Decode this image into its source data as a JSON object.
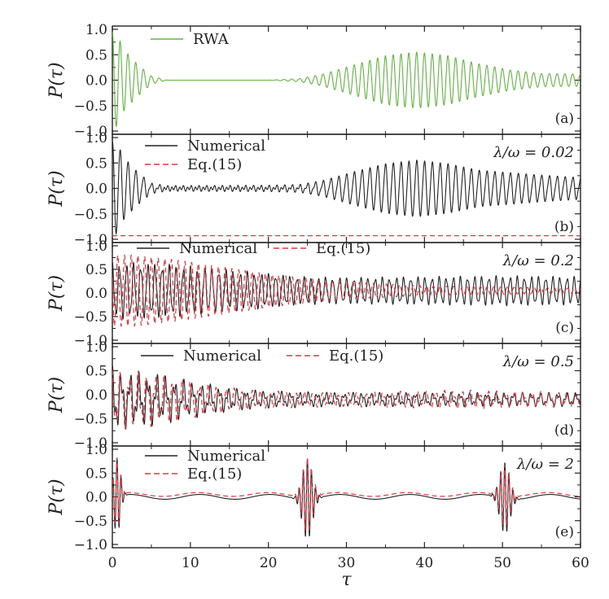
{
  "chart_data": {
    "type": "line",
    "x_axis": {
      "label": "τ",
      "range": [
        0,
        60
      ],
      "ticks": [
        0,
        10,
        20,
        30,
        40,
        50,
        60
      ],
      "tick_labels": [
        "0",
        "10",
        "20",
        "30",
        "40",
        "50",
        "60"
      ]
    },
    "y_axis_label": "P(τ)",
    "y_ticks": [
      1.0,
      0.5,
      0.0,
      -0.5,
      -1.0
    ],
    "y_tick_labels": [
      "1.0",
      "0.5",
      "0.0",
      "−0.5",
      "−1.0"
    ],
    "colors": {
      "rwa": "#5db83b",
      "numerical": "#222222",
      "eq15": "#e8323c"
    },
    "panels": [
      {
        "tag": "(a)",
        "ratio_label": "",
        "ylim": [
          -1.0,
          1.0
        ],
        "legend": [
          "RWA"
        ],
        "series": [
          {
            "name": "RWA",
            "color_key": "rwa",
            "dash": "solid",
            "model": {
              "osc_freq": 6.2832,
              "envelope": [
                [
                  0,
                  0.95
                ],
                [
                  0.6,
                  0.9
                ],
                [
                  1.5,
                  0.6
                ],
                [
                  3,
                  0.35
                ],
                [
                  5,
                  0.08
                ],
                [
                  7,
                  0.0
                ],
                [
                  20,
                  0.0
                ],
                [
                  24,
                  0.03
                ],
                [
                  27,
                  0.12
                ],
                [
                  31,
                  0.3
                ],
                [
                  35,
                  0.48
                ],
                [
                  39,
                  0.55
                ],
                [
                  43,
                  0.48
                ],
                [
                  47,
                  0.32
                ],
                [
                  51,
                  0.2
                ],
                [
                  55,
                  0.13
                ],
                [
                  60,
                  0.12
                ]
              ]
            }
          }
        ]
      },
      {
        "tag": "(b)",
        "ratio_label": "λ/ω = 0.02",
        "ylim": [
          -1.0,
          1.0
        ],
        "legend": [
          "Numerical",
          "Eq.(15)"
        ],
        "series": [
          {
            "name": "Numerical",
            "color_key": "numerical",
            "dash": "solid",
            "model": {
              "osc_freq": 6.2832,
              "fast_freq": 12.566,
              "fast_amp": 0.04,
              "envelope": [
                [
                  0,
                  0.92
                ],
                [
                  0.6,
                  0.88
                ],
                [
                  1.5,
                  0.6
                ],
                [
                  3,
                  0.35
                ],
                [
                  5,
                  0.08
                ],
                [
                  7,
                  0.02
                ],
                [
                  20,
                  0.03
                ],
                [
                  24,
                  0.05
                ],
                [
                  27,
                  0.14
                ],
                [
                  31,
                  0.32
                ],
                [
                  35,
                  0.48
                ],
                [
                  39,
                  0.55
                ],
                [
                  43,
                  0.48
                ],
                [
                  47,
                  0.35
                ],
                [
                  51,
                  0.3
                ],
                [
                  55,
                  0.25
                ],
                [
                  60,
                  0.2
                ]
              ]
            }
          },
          {
            "name": "Eq.(15)",
            "color_key": "eq15",
            "dash": "dashed",
            "model": {
              "constant": -0.93
            }
          }
        ]
      },
      {
        "tag": "(c)",
        "ratio_label": "λ/ω = 0.2",
        "ylim": [
          -1.0,
          1.0
        ],
        "legend": [
          "Numerical",
          "Eq.(15)"
        ],
        "series": [
          {
            "name": "Numerical",
            "color_key": "numerical",
            "dash": "solid",
            "model": {
              "osc_freq": 6.9,
              "offset": 0.05,
              "irregular": 0.15,
              "envelope": [
                [
                  0,
                  0.6
                ],
                [
                  2,
                  0.6
                ],
                [
                  6,
                  0.58
                ],
                [
                  12,
                  0.5
                ],
                [
                  18,
                  0.4
                ],
                [
                  24,
                  0.3
                ],
                [
                  30,
                  0.28
                ],
                [
                  40,
                  0.3
                ],
                [
                  50,
                  0.32
                ],
                [
                  60,
                  0.3
                ]
              ]
            }
          },
          {
            "name": "Eq.(15)",
            "color_key": "eq15",
            "dash": "dashed",
            "model": {
              "osc_freq": 7.3,
              "offset": 0.05,
              "phase": 1.2,
              "envelope": [
                [
                  0,
                  0.75
                ],
                [
                  3,
                  0.75
                ],
                [
                  8,
                  0.65
                ],
                [
                  14,
                  0.5
                ],
                [
                  20,
                  0.35
                ],
                [
                  28,
                  0.2
                ],
                [
                  40,
                  0.1
                ],
                [
                  60,
                  0.05
                ]
              ]
            }
          }
        ]
      },
      {
        "tag": "(d)",
        "ratio_label": "λ/ω = 0.5",
        "ylim": [
          -1.0,
          1.0
        ],
        "legend": [
          "Numerical",
          "Eq.(15)"
        ],
        "series": [
          {
            "name": "Numerical",
            "color_key": "numerical",
            "dash": "solid",
            "model": {
              "osc_freq": 5.5,
              "offset": -0.1,
              "irregular": 0.35,
              "envelope": [
                [
                  0,
                  0.7
                ],
                [
                  2,
                  0.6
                ],
                [
                  6,
                  0.55
                ],
                [
                  10,
                  0.4
                ],
                [
                  15,
                  0.25
                ],
                [
                  20,
                  0.18
                ],
                [
                  30,
                  0.15
                ],
                [
                  45,
                  0.15
                ],
                [
                  60,
                  0.15
                ]
              ]
            }
          },
          {
            "name": "Eq.(15)",
            "color_key": "eq15",
            "dash": "dashed",
            "model": {
              "osc_freq": 5.6,
              "offset": -0.1,
              "irregular": 0.3,
              "phase": 0.4,
              "envelope": [
                [
                  0,
                  0.65
                ],
                [
                  2,
                  0.6
                ],
                [
                  6,
                  0.55
                ],
                [
                  10,
                  0.4
                ],
                [
                  15,
                  0.25
                ],
                [
                  20,
                  0.18
                ],
                [
                  30,
                  0.15
                ],
                [
                  45,
                  0.2
                ],
                [
                  60,
                  0.15
                ]
              ]
            }
          }
        ]
      },
      {
        "tag": "(e)",
        "ratio_label": "λ/ω = 2",
        "ylim": [
          -1.0,
          1.0
        ],
        "legend": [
          "Numerical",
          "Eq.(15)"
        ],
        "series": [
          {
            "name": "Numerical",
            "color_key": "numerical",
            "dash": "solid",
            "model": {
              "osc_freq": 12.0,
              "offset": 0.0,
              "small_amp": 0.05,
              "bursts": [
                [
                  0.6,
                  0.8,
                  0.6
                ],
                [
                  25.0,
                  0.85,
                  0.9
                ],
                [
                  50.3,
                  0.75,
                  0.9
                ]
              ]
            }
          },
          {
            "name": "Eq.(15)",
            "color_key": "eq15",
            "dash": "dashed",
            "model": {
              "osc_freq": 12.0,
              "offset": 0.05,
              "small_amp": 0.04,
              "phase": 0.2,
              "bursts": [
                [
                  0.6,
                  0.75,
                  0.6
                ],
                [
                  25.0,
                  0.8,
                  0.9
                ],
                [
                  50.3,
                  0.65,
                  0.9
                ]
              ]
            }
          }
        ]
      }
    ]
  }
}
